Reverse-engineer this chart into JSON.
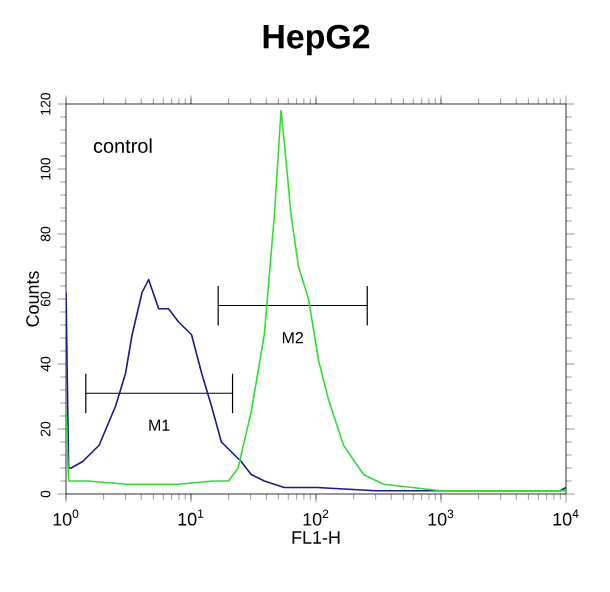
{
  "chart_data": {
    "type": "line",
    "title": "HepG2",
    "xlabel": "FL1-H",
    "ylabel": "Counts",
    "log": "x",
    "xlim": [
      1,
      10000
    ],
    "ylim": [
      0,
      120
    ],
    "xticks": [
      {
        "value": 1,
        "label": "10$^{0}$"
      },
      {
        "value": 10,
        "label": "10$^{1}$"
      },
      {
        "value": 100,
        "label": "10$^{2}$"
      },
      {
        "value": 1000,
        "label": "10$^{3}$"
      },
      {
        "value": 10000,
        "label": "10$^{4}$"
      }
    ],
    "yticks": [
      0,
      20,
      40,
      60,
      80,
      100,
      120
    ],
    "annotations": [
      "control",
      {
        "text": "M1",
        "x": 5.56,
        "y": 31
      },
      {
        "text": "M2",
        "x": 65.1,
        "y": 58
      }
    ],
    "series": [
      {
        "color": "#000000",
        "x": [
          1.44,
          1.44,
          1.44,
          21.5,
          21.5,
          21.5
        ],
        "values": [
          37,
          25,
          31,
          31,
          25,
          37
        ]
      },
      {
        "color": "#000000",
        "x": [
          16.5,
          16.5,
          16.5,
          257,
          257,
          257
        ],
        "values": [
          64,
          52,
          58,
          58,
          52,
          64
        ]
      },
      {
        "color": "#1a1a8c",
        "x": [
          1,
          1.05,
          1.1,
          1.36,
          1.84,
          2.49,
          2.99,
          3.38,
          4.06,
          4.58,
          5.51,
          6.61,
          7.93,
          10.1,
          12.2,
          14.6,
          17.5,
          21,
          25.2,
          30.3,
          38.6,
          55.7,
          102,
          300,
          1000,
          3000,
          9000,
          10000
        ],
        "values": [
          62,
          8,
          8,
          10,
          15,
          27,
          37,
          49,
          62,
          66,
          57,
          57,
          53,
          49,
          37,
          27,
          16,
          13,
          10,
          6,
          4,
          2,
          2,
          1,
          1,
          1,
          1,
          2
        ]
      },
      {
        "color": "#33dd33",
        "x": [
          1,
          1.05,
          1.5,
          3,
          8,
          15,
          20,
          23.8,
          30.2,
          38.6,
          46.5,
          52.5,
          56.2,
          63.1,
          72.4,
          87.1,
          105,
          126,
          166,
          240,
          347,
          1000,
          10000
        ],
        "values": [
          25,
          4,
          4,
          3,
          3,
          4,
          4,
          8,
          25,
          49,
          86,
          118,
          107,
          86,
          70,
          60,
          41,
          29,
          15,
          6,
          3,
          1,
          1
        ]
      }
    ]
  }
}
